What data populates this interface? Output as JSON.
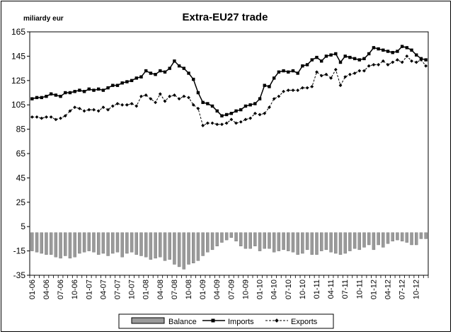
{
  "chart_data": {
    "type": "bar+line",
    "title": "Extra-EU27 trade",
    "unit_label": "miliardy eur",
    "ylim": [
      -35,
      165
    ],
    "yticks": [
      -35,
      -15,
      5,
      25,
      45,
      65,
      85,
      105,
      125,
      145,
      165
    ],
    "grid": false,
    "legend_position": "bottom",
    "x": [
      "01-06",
      "02-06",
      "03-06",
      "04-06",
      "05-06",
      "06-06",
      "07-06",
      "08-06",
      "09-06",
      "10-06",
      "11-06",
      "12-06",
      "01-07",
      "02-07",
      "03-07",
      "04-07",
      "05-07",
      "06-07",
      "07-07",
      "08-07",
      "09-07",
      "10-07",
      "11-07",
      "12-07",
      "01-08",
      "02-08",
      "03-08",
      "04-08",
      "05-08",
      "06-08",
      "07-08",
      "08-08",
      "09-08",
      "10-08",
      "11-08",
      "12-08",
      "01-09",
      "02-09",
      "03-09",
      "04-09",
      "05-09",
      "06-09",
      "07-09",
      "08-09",
      "09-09",
      "10-09",
      "11-09",
      "12-09",
      "01-10",
      "02-10",
      "03-10",
      "04-10",
      "05-10",
      "06-10",
      "07-10",
      "08-10",
      "09-10",
      "10-10",
      "11-10",
      "12-10",
      "01-11",
      "02-11",
      "03-11",
      "04-11",
      "05-11",
      "06-11",
      "07-11",
      "08-11",
      "09-11",
      "10-11",
      "11-11",
      "12-11",
      "01-12",
      "02-12",
      "03-12",
      "04-12",
      "05-12",
      "06-12",
      "07-12",
      "08-12",
      "09-12",
      "10-12",
      "11-12",
      "12-12"
    ],
    "xtick_labels": [
      "01-06",
      "04-06",
      "07-06",
      "10-06",
      "01-07",
      "04-07",
      "07-07",
      "10-07",
      "01-08",
      "04-08",
      "07-08",
      "10-08",
      "01-09",
      "04-09",
      "07-09",
      "10-09",
      "01-10",
      "04-10",
      "07-10",
      "10-10",
      "01-11",
      "04-11",
      "07-11",
      "10-11",
      "01-12",
      "04-12",
      "07-12",
      "10-12"
    ],
    "series": [
      {
        "name": "Balance",
        "kind": "bar",
        "color": "#9a9a9a",
        "values": [
          -15,
          -16,
          -17,
          -18,
          -18,
          -20,
          -21,
          -19,
          -21,
          -20,
          -17,
          -16,
          -15,
          -16,
          -18,
          -17,
          -19,
          -17,
          -16,
          -20,
          -17,
          -16,
          -18,
          -19,
          -20,
          -22,
          -21,
          -20,
          -23,
          -22,
          -26,
          -28,
          -30,
          -26,
          -25,
          -23,
          -19,
          -16,
          -14,
          -11,
          -8,
          -6,
          -4,
          -7,
          -11,
          -13,
          -13,
          -11,
          -15,
          -13,
          -13,
          -16,
          -15,
          -14,
          -15,
          -16,
          -18,
          -17,
          -14,
          -18,
          -18,
          -15,
          -14,
          -16,
          -17,
          -18,
          -17,
          -15,
          -13,
          -14,
          -12,
          -10,
          -14,
          -10,
          -12,
          -9,
          -7,
          -6,
          -7,
          -8,
          -10,
          -10,
          -5,
          -5
        ]
      },
      {
        "name": "Imports",
        "kind": "line",
        "marker": "square",
        "dash": "solid",
        "values": [
          110,
          111,
          111,
          112,
          114,
          113,
          112,
          115,
          115,
          116,
          117,
          116,
          118,
          117,
          118,
          117,
          119,
          121,
          121,
          123,
          124,
          125,
          127,
          128,
          133,
          131,
          130,
          133,
          132,
          135,
          141,
          137,
          135,
          131,
          126,
          115,
          107,
          106,
          104,
          100,
          96,
          97,
          98,
          100,
          101,
          104,
          105,
          106,
          110,
          121,
          120,
          127,
          132,
          133,
          132,
          133,
          131,
          137,
          138,
          142,
          144,
          141,
          145,
          146,
          147,
          140,
          145,
          144,
          143,
          142,
          143,
          147,
          152,
          151,
          150,
          149,
          148,
          149,
          153,
          152,
          150,
          146,
          143,
          142
        ]
      },
      {
        "name": "Exports",
        "kind": "line",
        "marker": "diamond",
        "dash": "dashed",
        "values": [
          95,
          95,
          94,
          95,
          95,
          93,
          94,
          96,
          100,
          103,
          102,
          100,
          101,
          101,
          100,
          103,
          101,
          104,
          106,
          105,
          105,
          106,
          104,
          112,
          113,
          110,
          107,
          114,
          108,
          112,
          113,
          110,
          112,
          111,
          105,
          102,
          88,
          90,
          90,
          89,
          89,
          90,
          93,
          90,
          91,
          93,
          94,
          98,
          97,
          98,
          103,
          110,
          112,
          116,
          117,
          117,
          117,
          119,
          119,
          120,
          132,
          129,
          130,
          127,
          134,
          121,
          128,
          130,
          131,
          133,
          133,
          137,
          138,
          138,
          141,
          138,
          140,
          142,
          140,
          145,
          141,
          140,
          142,
          137
        ]
      }
    ]
  }
}
